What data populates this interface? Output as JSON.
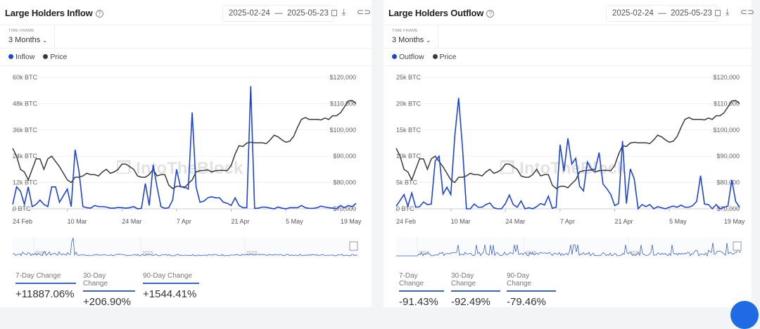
{
  "colors": {
    "flow": "#1e44d6",
    "price": "#3a3a3a",
    "grid": "#eef0f2",
    "underline": "#3d63c9"
  },
  "panels": [
    {
      "title": "Large Holders Inflow",
      "date_start": "2025-02-24",
      "date_sep": "—",
      "date_end": "2025-05-23",
      "time_frame_label": "TIME FRAME",
      "time_frame_value": "3 Months",
      "legend": [
        "Inflow",
        "Price"
      ],
      "navigator_years": [
        "2010",
        "2015",
        "2020"
      ],
      "stats": [
        {
          "label": "7-Day Change",
          "value": "+11887.06%"
        },
        {
          "label": "30-Day Change",
          "value": "+206.90%"
        },
        {
          "label": "90-Day Change",
          "value": "+1544.41%"
        }
      ]
    },
    {
      "title": "Large Holders Outflow",
      "date_start": "2025-02-24",
      "date_sep": "—",
      "date_end": "2025-05-23",
      "time_frame_label": "TIME FRAME",
      "time_frame_value": "3 Months",
      "legend": [
        "Outflow",
        "Price"
      ],
      "navigator_years": [
        "2010",
        "2015",
        "2020"
      ],
      "stats": [
        {
          "label": "7-Day Change",
          "value": "-91.43%"
        },
        {
          "label": "30-Day Change",
          "value": "-92.49%"
        },
        {
          "label": "90-Day Change",
          "value": "-79.46%"
        }
      ]
    }
  ],
  "chart_data": [
    {
      "type": "line",
      "title": "Large Holders Inflow",
      "x_start": "2025-02-24",
      "x_end": "2025-05-23",
      "x_ticks": [
        "24 Feb",
        "10 Mar",
        "24 Mar",
        "7 Apr",
        "21 Apr",
        "5 May",
        "19 May"
      ],
      "y_left_ticks": [
        "0 BTC",
        "12k BTC",
        "24k BTC",
        "36k BTC",
        "48k BTC",
        "60k BTC"
      ],
      "ylim_left": [
        0,
        60
      ],
      "y_right_ticks": [
        "$70,000",
        "$80,000",
        "$90,000",
        "$100,000",
        "$110,000",
        "$120,000"
      ],
      "ylim_right": [
        70,
        120
      ],
      "series": [
        {
          "name": "Inflow",
          "unit": "k BTC",
          "values": [
            2,
            10,
            8,
            2,
            10,
            1,
            2,
            4,
            2,
            1,
            10,
            10,
            3,
            6,
            9,
            1,
            27,
            17,
            1,
            0.5,
            0.3,
            1.5,
            1,
            1,
            0.8,
            0.3,
            0.3,
            0.6,
            0.5,
            0.3,
            0.5,
            1,
            0,
            0.2,
            11.5,
            1.5,
            20,
            10,
            1,
            0.2,
            0.5,
            4,
            18,
            10,
            10,
            9,
            44,
            10,
            3,
            3.5,
            5,
            5.5,
            5,
            5,
            3,
            2.5,
            1.5,
            5,
            1.5,
            0.5,
            0.5,
            56,
            0.2,
            0.3,
            0.8,
            0.7,
            0.3,
            0,
            0.8,
            0.3,
            0,
            0.5,
            0.5,
            0.5,
            1.5,
            0.5,
            0.2,
            0.2,
            0.5,
            1.2,
            0.8,
            0.5,
            0.3,
            0,
            1.5,
            0.5,
            1.5,
            1,
            2.5
          ]
        },
        {
          "name": "Price",
          "unit": "k USD",
          "values": [
            93,
            90,
            85,
            84,
            81,
            85,
            89,
            89,
            85,
            89,
            90,
            88,
            86,
            83.5,
            81,
            80,
            82,
            82,
            82.5,
            83.5,
            83,
            83,
            82.5,
            84,
            85,
            83.5,
            84,
            85,
            87,
            87,
            86,
            85,
            82.5,
            82,
            82,
            83,
            85,
            82.5,
            83,
            83,
            79,
            77.7,
            78.5,
            78.6,
            78,
            79.6,
            81,
            84,
            84.5,
            84.6,
            84.8,
            84,
            84.5,
            84.6,
            84.6,
            84.5,
            86.5,
            90.8,
            94,
            93.7,
            95,
            95.3,
            95.1,
            95.1,
            95.1,
            94.8,
            96.2,
            98,
            97.4,
            96.2,
            95.3,
            95.7,
            97.5,
            101,
            104,
            104.7,
            104,
            104,
            104,
            103.8,
            104.5,
            104,
            105.4,
            105.4,
            106.5,
            108.7,
            111,
            111.2,
            110
          ]
        }
      ]
    },
    {
      "type": "line",
      "title": "Large Holders Outflow",
      "x_start": "2025-02-24",
      "x_end": "2025-05-23",
      "x_ticks": [
        "24 Feb",
        "10 Mar",
        "24 Mar",
        "7 Apr",
        "21 Apr",
        "5 May",
        "19 May"
      ],
      "y_left_ticks": [
        "0 BTC",
        "5k BTC",
        "10k BTC",
        "15k BTC",
        "20k BTC",
        "25k BTC"
      ],
      "ylim_left": [
        0,
        25
      ],
      "y_right_ticks": [
        "$70,000",
        "$80,000",
        "$90,000",
        "$100,000",
        "$110,000",
        "$120,000"
      ],
      "ylim_right": [
        70,
        120
      ],
      "series": [
        {
          "name": "Outflow",
          "unit": "k BTC",
          "values": [
            0.5,
            1.6,
            2.7,
            0.5,
            3,
            0.3,
            0.4,
            1.3,
            0.8,
            0.9,
            9.1,
            10,
            2.8,
            4.1,
            2.7,
            13.7,
            21.1,
            11.5,
            0,
            0,
            0.9,
            0.3,
            0.3,
            0.8,
            1.1,
            0.2,
            0,
            0,
            1,
            2.6,
            0.8,
            0.3,
            1.5,
            0,
            0.2,
            0,
            0.4,
            1,
            0.7,
            2.4,
            0.1,
            0.3,
            12.2,
            7.1,
            13.4,
            8.5,
            9.6,
            4.3,
            3.4,
            8.9,
            7.6,
            7.4,
            10.7,
            4.7,
            3.8,
            2.7,
            0.6,
            1,
            12.9,
            1,
            7.6,
            5.7,
            0,
            0.8,
            0.4,
            0.8,
            0,
            0.4,
            0.2,
            0,
            0.3,
            0.5,
            0.3,
            0.7,
            0.3,
            0.3,
            0.6,
            1.4,
            6.3,
            0.9,
            0.8,
            0,
            0.8,
            0,
            0.3,
            0.5,
            5.5,
            1.4,
            0.3
          ]
        },
        {
          "name": "Price",
          "unit": "k USD",
          "values": [
            93,
            90,
            85,
            84,
            81,
            85,
            89,
            89,
            85,
            89,
            90,
            88,
            86,
            83.5,
            81,
            80,
            82,
            82,
            82.5,
            83.5,
            83,
            83,
            82.5,
            84,
            85,
            83.5,
            84,
            85,
            87,
            87,
            86,
            85,
            82.5,
            82,
            82,
            83,
            85,
            82.5,
            83,
            83,
            79,
            77.7,
            78.5,
            78.6,
            78,
            79.6,
            81,
            84,
            84.5,
            84.6,
            84.8,
            84,
            84.5,
            84.6,
            84.6,
            84.5,
            86.5,
            90.8,
            94,
            93.7,
            95,
            95.3,
            95.1,
            95.1,
            95.1,
            94.8,
            96.2,
            98,
            97.4,
            96.2,
            95.3,
            95.7,
            97.5,
            101,
            104,
            104.7,
            104,
            104,
            104,
            103.8,
            104.5,
            104,
            105.4,
            105.4,
            106.5,
            108.7,
            111,
            111.2,
            110
          ]
        }
      ]
    }
  ]
}
